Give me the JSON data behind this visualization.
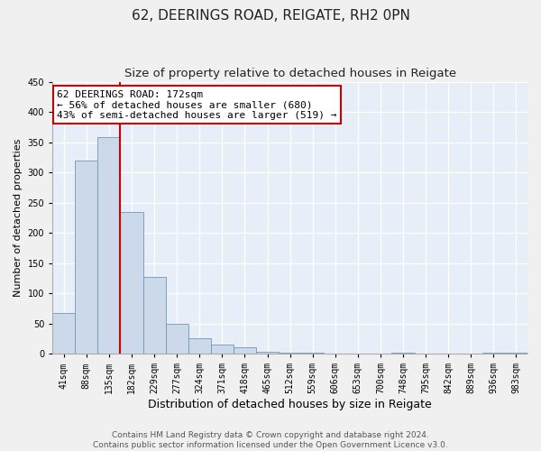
{
  "title": "62, DEERINGS ROAD, REIGATE, RH2 0PN",
  "subtitle": "Size of property relative to detached houses in Reigate",
  "xlabel": "Distribution of detached houses by size in Reigate",
  "ylabel": "Number of detached properties",
  "bar_color": "#ccd9ea",
  "bar_edge_color": "#7096b8",
  "bin_labels": [
    "41sqm",
    "88sqm",
    "135sqm",
    "182sqm",
    "229sqm",
    "277sqm",
    "324sqm",
    "371sqm",
    "418sqm",
    "465sqm",
    "512sqm",
    "559sqm",
    "606sqm",
    "653sqm",
    "700sqm",
    "748sqm",
    "795sqm",
    "842sqm",
    "889sqm",
    "936sqm",
    "983sqm"
  ],
  "bar_heights": [
    68,
    320,
    358,
    235,
    127,
    49,
    25,
    15,
    10,
    3,
    2,
    1,
    0,
    0,
    0,
    1,
    0,
    0,
    0,
    1,
    1
  ],
  "ylim": [
    0,
    450
  ],
  "yticks": [
    0,
    50,
    100,
    150,
    200,
    250,
    300,
    350,
    400,
    450
  ],
  "vline_x": 2.5,
  "vline_color": "#cc0000",
  "annotation_line1": "62 DEERINGS ROAD: 172sqm",
  "annotation_line2": "← 56% of detached houses are smaller (680)",
  "annotation_line3": "43% of semi-detached houses are larger (519) →",
  "annotation_box_color": "#ffffff",
  "annotation_box_edge_color": "#cc0000",
  "footer_line1": "Contains HM Land Registry data © Crown copyright and database right 2024.",
  "footer_line2": "Contains public sector information licensed under the Open Government Licence v3.0.",
  "plot_bg_color": "#e8eef7",
  "fig_bg_color": "#f0f0f0",
  "grid_color": "#ffffff",
  "title_fontsize": 11,
  "subtitle_fontsize": 9.5,
  "xlabel_fontsize": 9,
  "ylabel_fontsize": 8,
  "tick_fontsize": 7,
  "annotation_fontsize": 8,
  "footer_fontsize": 6.5
}
